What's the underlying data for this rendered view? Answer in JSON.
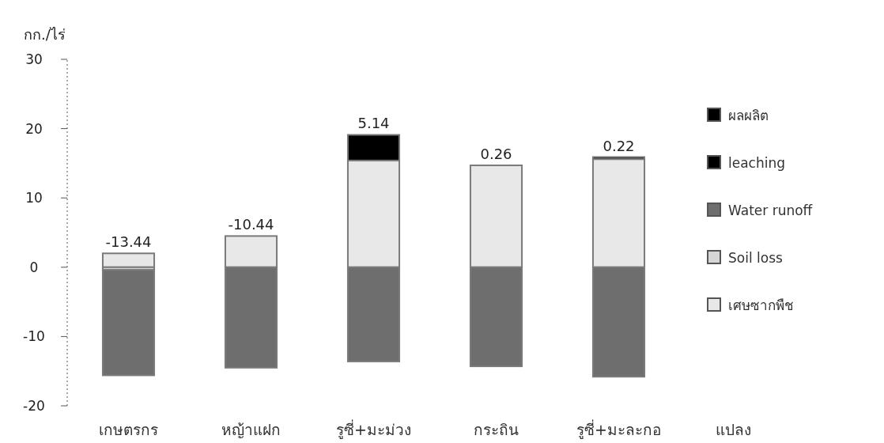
{
  "chart_data": {
    "type": "bar",
    "stacked": true,
    "ylabel": "กก./ไร่",
    "xlabel": "แปลง",
    "categories": [
      "เกษตรกร",
      "หญ้าแฝก",
      "รูซี่+มะม่วง",
      "กระถิน",
      "รูซี่+มะละกอ"
    ],
    "series": [
      {
        "name": "เศษซากพืช",
        "color": "#e8e8e8",
        "values": [
          2.0,
          4.5,
          15.4,
          14.7,
          15.6
        ]
      },
      {
        "name": "Soil loss",
        "color": "#d6d6d6",
        "values": [
          -0.4,
          null,
          null,
          null,
          null
        ]
      },
      {
        "name": "Water runoff",
        "color": "#6e6e6e",
        "values": [
          -15.2,
          -14.5,
          -13.6,
          -14.3,
          -15.8
        ]
      },
      {
        "name": "leaching",
        "color": "#000000",
        "values": [
          null,
          null,
          null,
          null,
          null
        ]
      },
      {
        "name": "ผลผลิต",
        "color": "#000000",
        "values": [
          null,
          null,
          3.7,
          null,
          0.3
        ]
      }
    ],
    "annotations": [
      {
        "text": "-13.44",
        "x": "เกษตรกร",
        "y": 2.0
      },
      {
        "text": "-10.44",
        "x": "หญ้าแฝก",
        "y": 4.5
      },
      {
        "text": "5.14",
        "x": "รูซี่+มะม่วง",
        "y": 19.1
      },
      {
        "text": "0.26",
        "x": "กระถิน",
        "y": 14.7
      },
      {
        "text": "0.22",
        "x": "รูซี่+มะละกอ",
        "y": 15.9
      }
    ],
    "ylim": [
      -20,
      30
    ],
    "yticks": [
      -20,
      -10,
      0,
      10,
      20,
      30
    ],
    "grid": false,
    "legend": "right"
  }
}
